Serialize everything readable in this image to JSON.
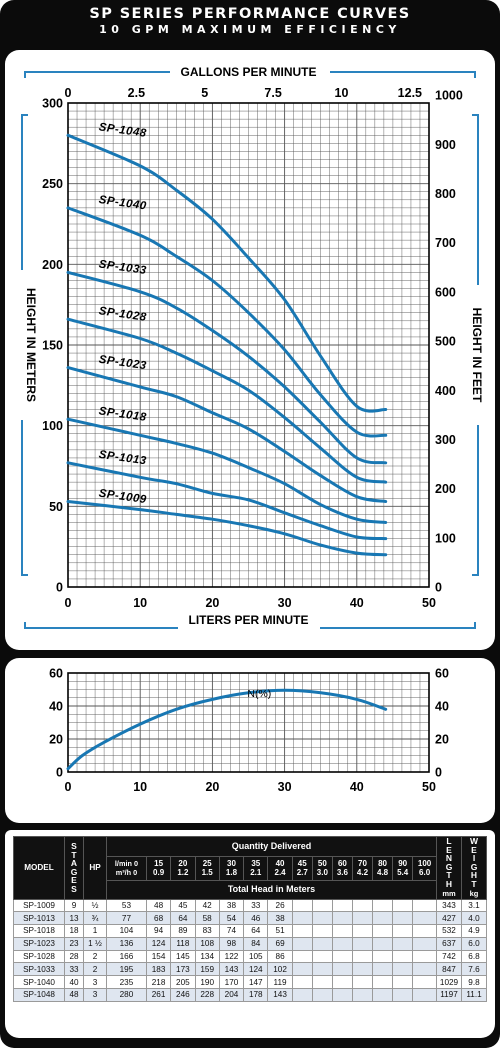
{
  "header": {
    "title": "SP SERIES PERFORMANCE CURVES",
    "subtitle": "10 GPM MAXIMUM EFFICIENCY"
  },
  "colors": {
    "curve": "#1877b3",
    "frame": "#0b0b0b",
    "accent_band": "#2a83bf",
    "grid": "#555555"
  },
  "chart_data": [
    {
      "type": "line",
      "xlabel": "LITERS PER MINUTE",
      "x2label": "GALLONS PER MINUTE",
      "ylabel": "HEIGHT IN METERS",
      "y2label": "HEIGHT IN FEET",
      "xlim": [
        0,
        50
      ],
      "ylim": [
        0,
        300
      ],
      "x2lim": [
        0,
        13.2
      ],
      "y2lim": [
        0,
        984
      ],
      "x_ticks": [
        "0",
        "10",
        "20",
        "30",
        "40",
        "50"
      ],
      "x2_ticks": [
        "0",
        "2.5",
        "5",
        "7.5",
        "10",
        "12.5"
      ],
      "y_ticks": [
        "0",
        "50",
        "100",
        "150",
        "200",
        "250",
        "300"
      ],
      "y2_ticks": [
        "0",
        "100",
        "200",
        "300",
        "400",
        "500",
        "600",
        "700",
        "800",
        "900",
        "1000"
      ],
      "grid": true,
      "series": [
        {
          "name": "SP-1048",
          "x": [
            0,
            10,
            15,
            20,
            25,
            30,
            35,
            40,
            44
          ],
          "y": [
            280,
            261,
            246,
            228,
            204,
            178,
            143,
            112,
            110
          ]
        },
        {
          "name": "SP-1040",
          "x": [
            0,
            10,
            15,
            20,
            25,
            30,
            35,
            40,
            44
          ],
          "y": [
            235,
            218,
            205,
            190,
            170,
            147,
            119,
            96,
            94
          ]
        },
        {
          "name": "SP-1033",
          "x": [
            0,
            10,
            15,
            20,
            25,
            30,
            35,
            40,
            44
          ],
          "y": [
            195,
            183,
            173,
            159,
            143,
            124,
            102,
            80,
            77
          ]
        },
        {
          "name": "SP-1028",
          "x": [
            0,
            10,
            15,
            20,
            25,
            30,
            35,
            40,
            44
          ],
          "y": [
            166,
            154,
            145,
            134,
            122,
            105,
            86,
            68,
            65
          ]
        },
        {
          "name": "SP-1023",
          "x": [
            0,
            10,
            15,
            20,
            25,
            30,
            35,
            40,
            44
          ],
          "y": [
            136,
            124,
            118,
            108,
            98,
            84,
            69,
            56,
            53
          ]
        },
        {
          "name": "SP-1018",
          "x": [
            0,
            10,
            15,
            20,
            25,
            30,
            35,
            40,
            44
          ],
          "y": [
            104,
            94,
            89,
            83,
            74,
            64,
            51,
            42,
            40
          ]
        },
        {
          "name": "SP-1013",
          "x": [
            0,
            10,
            15,
            20,
            25,
            30,
            35,
            40,
            44
          ],
          "y": [
            77,
            68,
            64,
            58,
            54,
            46,
            38,
            31,
            30
          ]
        },
        {
          "name": "SP-1009",
          "x": [
            0,
            10,
            15,
            20,
            25,
            30,
            35,
            40,
            44
          ],
          "y": [
            53,
            48,
            45,
            42,
            38,
            33,
            26,
            21,
            20
          ]
        }
      ]
    },
    {
      "type": "line",
      "xlim": [
        0,
        50
      ],
      "ylim": [
        0,
        60
      ],
      "x_ticks": [
        "0",
        "10",
        "20",
        "30",
        "40",
        "50"
      ],
      "y_ticks": [
        "0",
        "20",
        "40",
        "60"
      ],
      "grid": true,
      "series": [
        {
          "name": "N(%)",
          "x": [
            0,
            2,
            5,
            10,
            15,
            20,
            25,
            30,
            35,
            40,
            44
          ],
          "y": [
            2,
            10,
            18,
            29,
            38,
            44,
            48,
            49.5,
            48,
            44,
            38
          ]
        }
      ]
    }
  ],
  "table": {
    "headers": {
      "model": "MODEL",
      "stages": "STAGES",
      "hp": "HP",
      "quantity": "Quantity Delivered",
      "lmin": "l/min 0",
      "m3h": "m³/h 0",
      "lmin_vals": [
        "15",
        "20",
        "25",
        "30",
        "35",
        "40",
        "45",
        "50",
        "60",
        "70",
        "80",
        "90",
        "100"
      ],
      "m3h_vals": [
        "0.9",
        "1.2",
        "1.5",
        "1.8",
        "2.1",
        "2.4",
        "2.7",
        "3.0",
        "3.6",
        "4.2",
        "4.8",
        "5.4",
        "6.0"
      ],
      "total_head": "Total Head in Meters",
      "length": "LENGTH",
      "length_unit": "mm",
      "weight": "WEIGHT",
      "weight_unit": "kg"
    },
    "rows": [
      {
        "model": "SP-1009",
        "stages": "9",
        "hp": "½",
        "heads": [
          "53",
          "48",
          "45",
          "42",
          "38",
          "33",
          "26"
        ],
        "length": "343",
        "weight": "3.1"
      },
      {
        "model": "SP-1013",
        "stages": "13",
        "hp": "¾",
        "heads": [
          "77",
          "68",
          "64",
          "58",
          "54",
          "46",
          "38"
        ],
        "length": "427",
        "weight": "4.0"
      },
      {
        "model": "SP-1018",
        "stages": "18",
        "hp": "1",
        "heads": [
          "104",
          "94",
          "89",
          "83",
          "74",
          "64",
          "51"
        ],
        "length": "532",
        "weight": "4.9"
      },
      {
        "model": "SP-1023",
        "stages": "23",
        "hp": "1 ½",
        "heads": [
          "136",
          "124",
          "118",
          "108",
          "98",
          "84",
          "69"
        ],
        "length": "637",
        "weight": "6.0"
      },
      {
        "model": "SP-1028",
        "stages": "28",
        "hp": "2",
        "heads": [
          "166",
          "154",
          "145",
          "134",
          "122",
          "105",
          "86"
        ],
        "length": "742",
        "weight": "6.8"
      },
      {
        "model": "SP-1033",
        "stages": "33",
        "hp": "2",
        "heads": [
          "195",
          "183",
          "173",
          "159",
          "143",
          "124",
          "102"
        ],
        "length": "847",
        "weight": "7.6"
      },
      {
        "model": "SP-1040",
        "stages": "40",
        "hp": "3",
        "heads": [
          "235",
          "218",
          "205",
          "190",
          "170",
          "147",
          "119"
        ],
        "length": "1029",
        "weight": "9.8"
      },
      {
        "model": "SP-1048",
        "stages": "48",
        "hp": "3",
        "heads": [
          "280",
          "261",
          "246",
          "228",
          "204",
          "178",
          "143"
        ],
        "length": "1197",
        "weight": "11.1"
      }
    ]
  }
}
